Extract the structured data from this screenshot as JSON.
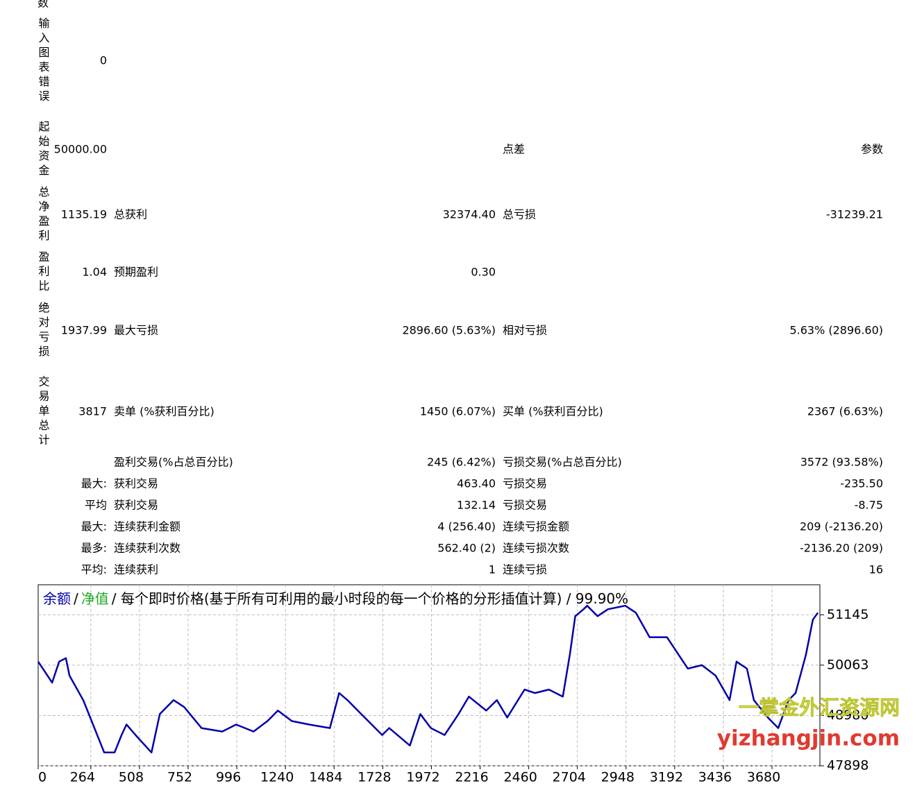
{
  "report": {
    "top_label": "数",
    "summary_rows": [
      {
        "label": "输入图表错误",
        "value": "0"
      },
      {
        "label": "起始资金",
        "value": "50000.00",
        "c3label": "点差",
        "c3value": "参数"
      },
      {
        "label": "总净盈利",
        "value": "1135.19",
        "c2label": "总获利",
        "c2value": "32374.40",
        "c3label": "总亏损",
        "c3value": "-31239.21"
      },
      {
        "label": "盈利比",
        "value": "1.04",
        "c2label": "预期盈利",
        "c2value": "0.30"
      },
      {
        "label": "绝对亏损",
        "value": "1937.99",
        "c2label": "最大亏损",
        "c2value": "2896.60 (5.63%)",
        "c3label": "相对亏损",
        "c3value": "5.63% (2896.60)"
      },
      {
        "label": "交易单总计",
        "value": "3817",
        "c2label": "卖单 (%获利百分比)",
        "c2value": "1450 (6.07%)",
        "c3label": "买单 (%获利百分比)",
        "c3value": "2367 (6.63%)"
      }
    ],
    "detail_rows": [
      {
        "c2label": "盈利交易(%占总百分比)",
        "c2value": "245 (6.42%)",
        "c3label": "亏损交易(%占总百分比)",
        "c3value": "3572 (93.58%)"
      },
      {
        "label": "最大:",
        "c2label": "获利交易",
        "c2value": "463.40",
        "c3label": "亏损交易",
        "c3value": "-235.50"
      },
      {
        "label": "平均",
        "c2label": "获利交易",
        "c2value": "132.14",
        "c3label": "亏损交易",
        "c3value": "-8.75"
      },
      {
        "label": "最大:",
        "c2label": "连续获利金额",
        "c2value": "4 (256.40)",
        "c3label": "连续亏损金额",
        "c3value": "209 (-2136.20)"
      },
      {
        "label": "最多:",
        "c2label": "连续获利次数",
        "c2value": "562.40 (2)",
        "c3label": "连续亏损次数",
        "c3value": "-2136.20 (209)"
      },
      {
        "label": "平均:",
        "c2label": "连续获利",
        "c2value": "1",
        "c3label": "连续亏损",
        "c3value": "16"
      }
    ]
  },
  "chart_data": {
    "type": "line",
    "separator": "/",
    "equity_label": "净值",
    "equity_color": "#22aa22",
    "title": "/ 每个即时价格(基于所有可利用的最小时段的每一个价格的分形插值计算) / 99.90%",
    "x": [
      0,
      70,
      105,
      139,
      157,
      226,
      331,
      383,
      418,
      443,
      488,
      568,
      610,
      679,
      732,
      819,
      923,
      993,
      1080,
      1150,
      1202,
      1272,
      1359,
      1463,
      1509,
      1551,
      1620,
      1725,
      1760,
      1864,
      1916,
      1969,
      2038,
      2108,
      2160,
      2247,
      2300,
      2352,
      2439,
      2491,
      2561,
      2631,
      2666,
      2693,
      2735,
      2753,
      2805,
      2857,
      2944,
      2997,
      3066,
      3153,
      3258,
      3328,
      3397,
      3467,
      3502,
      3554,
      3589,
      3659,
      3711,
      3763,
      3798,
      3850,
      3885,
      3910
    ],
    "series": [
      {
        "name": "余额",
        "color": "#0000aa",
        "values": [
          50138,
          49687,
          50138,
          50213,
          49837,
          49311,
          48184,
          48184,
          48560,
          48785,
          48560,
          48184,
          49011,
          49311,
          49161,
          48710,
          48635,
          48785,
          48635,
          48860,
          49086,
          48860,
          48785,
          48710,
          49462,
          49311,
          49011,
          48560,
          48710,
          48334,
          49011,
          48710,
          48560,
          49011,
          49386,
          49086,
          49311,
          48936,
          49537,
          49462,
          49537,
          49386,
          50288,
          51115,
          51265,
          51340,
          51115,
          51265,
          51340,
          51190,
          50664,
          50664,
          49988,
          50063,
          49837,
          49311,
          50138,
          49988,
          49311,
          48936,
          48710,
          49311,
          49462,
          50288,
          51040,
          51190
        ]
      }
    ],
    "xlim": [
      0,
      3920
    ],
    "ylim": [
      47898,
      51791
    ],
    "xticks": [
      0,
      264,
      508,
      752,
      996,
      1240,
      1484,
      1728,
      1972,
      2216,
      2460,
      2704,
      2948,
      3192,
      3436,
      3680
    ],
    "yticks": [
      47898,
      48980,
      50063,
      51145
    ],
    "grid": true,
    "watermark": [
      "一掌金外汇资源网",
      "yizhangjin.com"
    ]
  }
}
